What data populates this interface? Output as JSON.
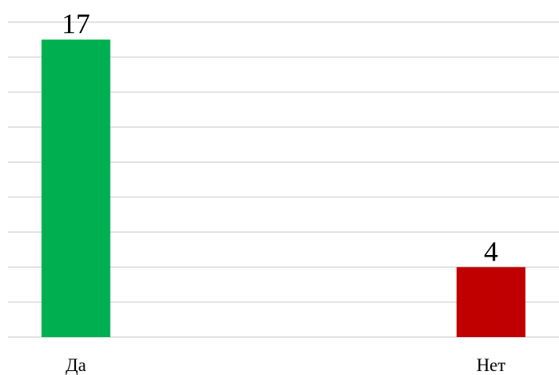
{
  "chart_data": {
    "type": "bar",
    "categories": [
      "Да",
      "Нет"
    ],
    "values": [
      17,
      4
    ],
    "colors": [
      "#00b050",
      "#c00000"
    ],
    "ylim": [
      0,
      18
    ],
    "yticks": [
      0,
      2,
      4,
      6,
      8,
      10,
      12,
      14,
      16,
      18
    ],
    "grid": true
  }
}
